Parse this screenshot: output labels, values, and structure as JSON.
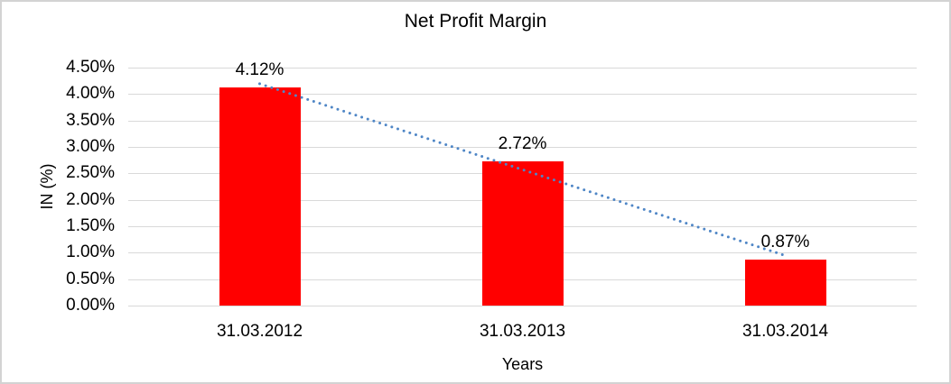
{
  "chart_data": {
    "type": "bar",
    "title": "Net Profit Margin",
    "categories": [
      "31.03.2012",
      "31.03.2013",
      "31.03.2014"
    ],
    "values": [
      4.12,
      2.72,
      0.87
    ],
    "data_labels": [
      "4.12%",
      "2.72%",
      "0.87%"
    ],
    "xlabel": "Years",
    "ylabel": "IN (%)",
    "ylim": [
      0,
      4.5
    ],
    "ytick_step": 0.5,
    "ytick_labels_top_to_bottom": [
      "4.50%",
      "4.00%",
      "3.50%",
      "3.00%",
      "2.50%",
      "2.00%",
      "1.50%",
      "1.00%",
      "0.50%",
      "0.00%"
    ],
    "grid": true,
    "legend": "none",
    "bar_color": "#ff0000",
    "gridline_color": "#d9d9d9",
    "frame_border_color": "#d3d3d3",
    "trendline": {
      "type": "linear",
      "style": "round-dot",
      "color": "#4f86c6",
      "values_at_ends": [
        4.195,
        0.945
      ]
    }
  }
}
